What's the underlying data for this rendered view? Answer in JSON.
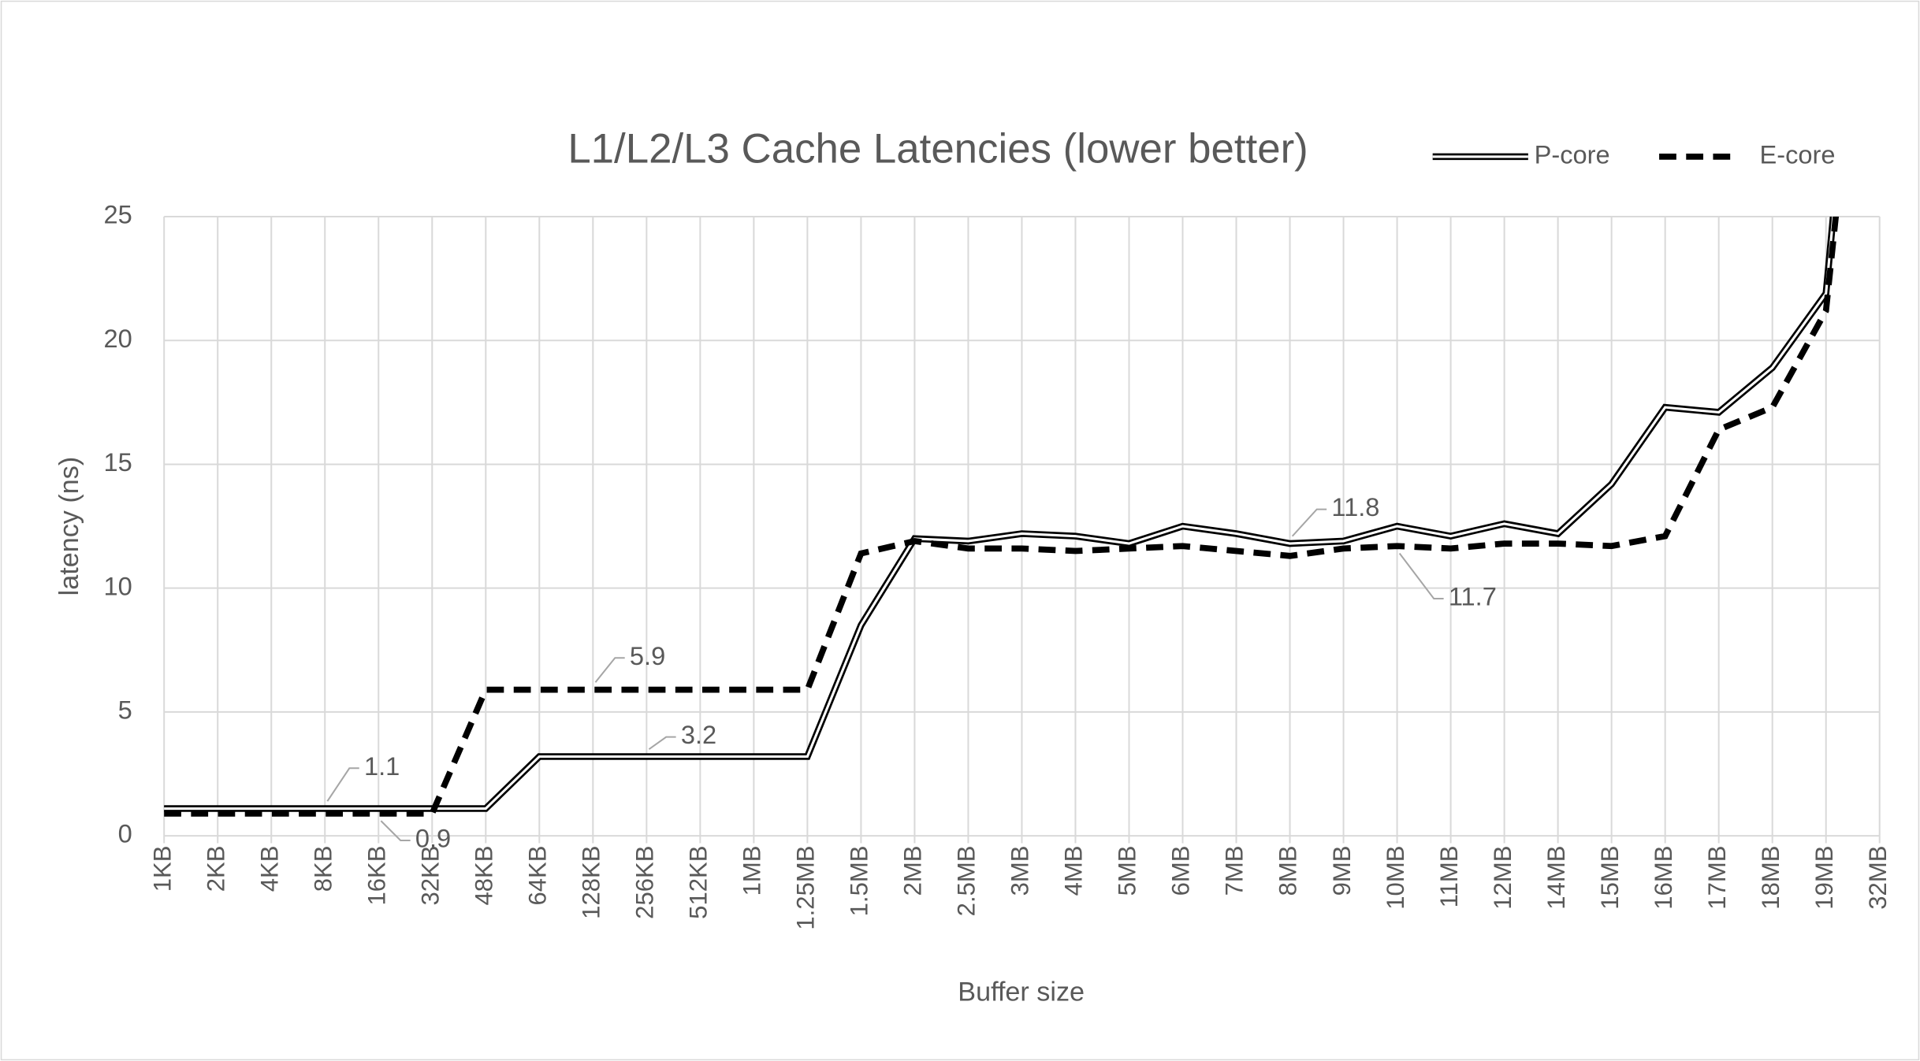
{
  "chart_data": {
    "type": "line",
    "title": "L1/L2/L3 Cache Latencies (lower better)",
    "x_label": "Buffer size",
    "y_label": "latency (ns)",
    "categories": [
      "1KB",
      "2KB",
      "4KB",
      "8KB",
      "16KB",
      "32KB",
      "48KB",
      "64KB",
      "128KB",
      "256KB",
      "512KB",
      "1MB",
      "1.25MB",
      "1.5MB",
      "2MB",
      "2.5MB",
      "3MB",
      "4MB",
      "5MB",
      "6MB",
      "7MB",
      "8MB",
      "9MB",
      "10MB",
      "11MB",
      "12MB",
      "14MB",
      "15MB",
      "16MB",
      "17MB",
      "18MB",
      "19MB",
      "32MB"
    ],
    "series": [
      {
        "name": "P-core",
        "color": "#000000",
        "style": "double",
        "values": [
          1.1,
          1.1,
          1.1,
          1.1,
          1.1,
          1.1,
          1.1,
          3.2,
          3.2,
          3.2,
          3.2,
          3.2,
          3.2,
          8.5,
          12.0,
          11.9,
          12.2,
          12.1,
          11.8,
          12.5,
          12.2,
          11.8,
          11.9,
          12.5,
          12.1,
          12.6,
          12.2,
          14.2,
          17.3,
          17.1,
          18.9,
          21.9,
          45
        ],
        "value_labels": [
          null,
          null,
          null,
          "1.1",
          null,
          null,
          null,
          null,
          null,
          "3.2",
          null,
          null,
          null,
          null,
          null,
          null,
          null,
          null,
          null,
          null,
          null,
          "11.8",
          null,
          null,
          null,
          null,
          null,
          null,
          null,
          null,
          null,
          null,
          null
        ]
      },
      {
        "name": "E-core",
        "color": "#000000",
        "style": "dashed",
        "values": [
          0.9,
          0.9,
          0.9,
          0.9,
          0.9,
          0.9,
          5.9,
          5.9,
          5.9,
          5.9,
          5.9,
          5.9,
          5.9,
          11.4,
          11.9,
          11.6,
          11.6,
          11.5,
          11.6,
          11.7,
          11.5,
          11.3,
          11.6,
          11.7,
          11.6,
          11.8,
          11.8,
          11.7,
          12.1,
          16.4,
          17.3,
          21.2,
          42
        ],
        "value_labels": [
          null,
          null,
          null,
          null,
          "0.9",
          null,
          null,
          null,
          "5.9",
          null,
          null,
          null,
          null,
          null,
          null,
          null,
          null,
          null,
          null,
          null,
          null,
          null,
          null,
          "11.7",
          null,
          null,
          null,
          null,
          null,
          null,
          null,
          null,
          null
        ]
      }
    ],
    "ylim": [
      0,
      25
    ],
    "yticks": [
      0,
      5,
      10,
      15,
      20,
      25
    ],
    "grid": true,
    "legend": "top-right"
  }
}
